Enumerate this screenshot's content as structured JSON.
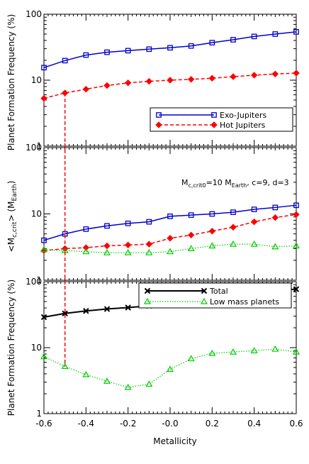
{
  "colors": {
    "blue": "#0000cc",
    "red": "#ff0000",
    "black": "#000000",
    "green": "#00cc00"
  },
  "chart_data": [
    {
      "type": "line",
      "panel": "top",
      "ylabel": "Planet Formation Frequency (%)",
      "yscale": "log",
      "ylim": [
        1,
        100
      ],
      "ytick_labels": [
        "1",
        "10",
        "100"
      ],
      "xlim": [
        -0.6,
        0.6
      ],
      "x": [
        -0.6,
        -0.5,
        -0.4,
        -0.3,
        -0.2,
        -0.1,
        0.0,
        0.1,
        0.2,
        0.3,
        0.4,
        0.5,
        0.6
      ],
      "series": [
        {
          "name": "Exo-Jupiters",
          "color": "#0000cc",
          "marker": "square",
          "linestyle": "solid",
          "values": [
            15.5,
            19.8,
            24,
            26.5,
            28,
            29.5,
            31,
            33,
            37,
            41,
            46,
            50,
            54
          ]
        },
        {
          "name": "Hot Jupiters",
          "color": "#ff0000",
          "marker": "diamond",
          "linestyle": "dashed",
          "values": [
            5.3,
            6.4,
            7.3,
            8.3,
            9.1,
            9.6,
            10.0,
            10.3,
            10.7,
            11.3,
            11.9,
            12.4,
            12.8
          ]
        }
      ],
      "legend_position": "lower-right"
    },
    {
      "type": "line",
      "panel": "middle",
      "ylabel_main": "<M",
      "ylabel_sub": "c,crit",
      "ylabel_units": "> (M",
      "ylabel_units_sub": "Earth",
      "ylabel_end": ")",
      "yscale": "log",
      "ylim": [
        1,
        100
      ],
      "ytick_labels": [
        "1",
        "10",
        "100"
      ],
      "xlim": [
        -0.6,
        0.6
      ],
      "annotation": {
        "m": "M",
        "m_sub": "c,crit0",
        "eq": "=10 M",
        "earth_sub": "Earth",
        "rest": ", c=9, d=3"
      },
      "x": [
        -0.6,
        -0.5,
        -0.4,
        -0.3,
        -0.2,
        -0.1,
        0.0,
        0.1,
        0.2,
        0.3,
        0.4,
        0.5,
        0.6
      ],
      "series": [
        {
          "color": "#0000cc",
          "marker": "square",
          "linestyle": "solid",
          "values": [
            4.0,
            5.0,
            5.9,
            6.6,
            7.2,
            7.6,
            9.2,
            9.6,
            10.0,
            10.6,
            11.7,
            12.5,
            13.5
          ]
        },
        {
          "color": "#ff0000",
          "marker": "diamond",
          "linestyle": "dashed",
          "values": [
            2.8,
            3.0,
            3.1,
            3.3,
            3.4,
            3.5,
            4.3,
            4.8,
            5.5,
            6.3,
            7.6,
            8.8,
            9.8
          ]
        },
        {
          "color": "#00cc00",
          "marker": "triangle",
          "linestyle": "dotted",
          "values": [
            2.9,
            2.8,
            2.7,
            2.6,
            2.6,
            2.6,
            2.7,
            3.0,
            3.3,
            3.5,
            3.5,
            3.2,
            3.3
          ]
        }
      ]
    },
    {
      "type": "line",
      "panel": "bottom",
      "ylabel": "Planet Formation Frequency (%)",
      "xlabel": "Metallicity",
      "yscale": "log",
      "ylim": [
        1,
        100
      ],
      "ytick_labels": [
        "1",
        "10",
        "100"
      ],
      "xlim": [
        -0.6,
        0.6
      ],
      "xtick_labels": [
        "-0.6",
        "-0.4",
        "-0.2",
        "-0.0",
        "0.2",
        "0.4",
        "0.6"
      ],
      "xtick_values": [
        -0.6,
        -0.4,
        -0.2,
        0.0,
        0.2,
        0.4,
        0.6
      ],
      "x": [
        -0.6,
        -0.5,
        -0.4,
        -0.3,
        -0.2,
        -0.1,
        0.0,
        0.1,
        0.2,
        0.3,
        0.4,
        0.5,
        0.6
      ],
      "series": [
        {
          "name": "Total",
          "color": "#000000",
          "marker": "x",
          "linestyle": "solid",
          "values": [
            29,
            33,
            36,
            38.5,
            40.5,
            43,
            47,
            52,
            58,
            63,
            69,
            73,
            77
          ]
        },
        {
          "name": "Low mass planets",
          "color": "#00cc00",
          "marker": "triangle",
          "linestyle": "dotted",
          "values": [
            7.3,
            5.2,
            3.9,
            3.1,
            2.5,
            2.8,
            4.7,
            6.8,
            8.2,
            8.6,
            9.0,
            9.5,
            8.6
          ]
        }
      ],
      "legend_position": "upper-right"
    }
  ],
  "reference_line": {
    "x": -0.5,
    "color": "#ff0000",
    "linestyle": "dashed"
  }
}
